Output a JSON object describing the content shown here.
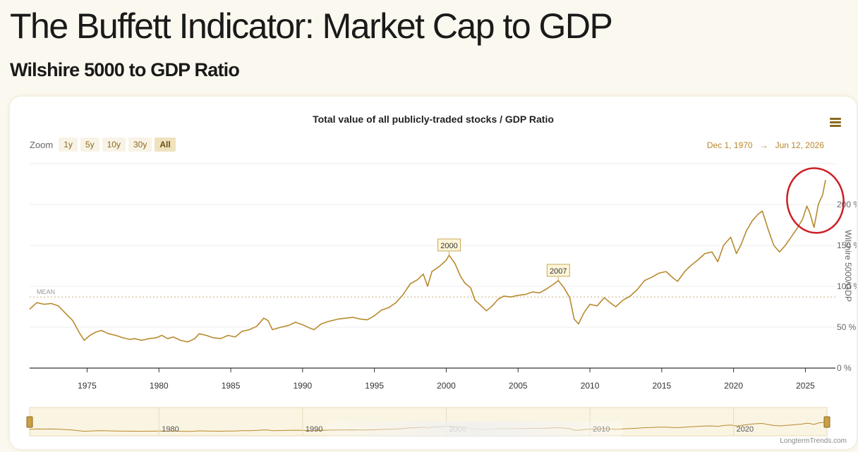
{
  "page": {
    "title": "The Buffett Indicator: Market Cap to GDP",
    "subtitle": "Wilshire 5000 to GDP Ratio"
  },
  "chart_data": {
    "type": "line",
    "title": "Total value of all publicly-traded stocks / GDP Ratio",
    "ylabel": "Wilshire 5000/GDP",
    "ylim": [
      0,
      250
    ],
    "xlim": [
      1971,
      2026.5
    ],
    "y_ticks": [
      0,
      50,
      100,
      150,
      200
    ],
    "y_tick_labels": [
      "0 %",
      "50 %",
      "100 %",
      "150 %",
      "200 %"
    ],
    "x_ticks": [
      "1975",
      "1980",
      "1985",
      "1990",
      "1995",
      "2000",
      "2005",
      "2010",
      "2015",
      "2020",
      "2025"
    ],
    "navigator_ticks": [
      "1980",
      "1990",
      "2000",
      "2010",
      "2020"
    ],
    "mean": {
      "label": "MEAN",
      "value": 87
    },
    "annotations": [
      {
        "label": "2000",
        "x": 2000.2,
        "y": 138
      },
      {
        "label": "2007",
        "x": 2007.8,
        "y": 107
      }
    ],
    "highlight_circle": {
      "x": 2025.2,
      "y": 204
    },
    "line_color": "#b88a2e",
    "series": [
      {
        "x": [
          1971.0,
          1971.5,
          1972.0,
          1972.5,
          1973.0,
          1973.5,
          1974.0,
          1974.5,
          1974.8,
          1975.2,
          1975.6,
          1976.0,
          1976.5,
          1977.0,
          1977.5,
          1978.0,
          1978.3,
          1978.8,
          1979.3,
          1979.8,
          1980.2,
          1980.6,
          1981.0,
          1981.5,
          1982.0,
          1982.5,
          1982.8,
          1983.3,
          1983.8,
          1984.3,
          1984.8,
          1985.3,
          1985.8,
          1986.3,
          1986.8,
          1987.3,
          1987.6,
          1987.9,
          1988.5,
          1989.0,
          1989.5,
          1990.0,
          1990.5,
          1990.8,
          1991.3,
          1991.8,
          1992.5,
          1993.0,
          1993.5,
          1994.0,
          1994.5,
          1995.0,
          1995.5,
          1996.0,
          1996.5,
          1997.0,
          1997.5,
          1998.0,
          1998.4,
          1998.7,
          1999.0,
          1999.5,
          2000.0,
          2000.2,
          2000.6,
          2001.0,
          2001.3,
          2001.7,
          2002.0,
          2002.5,
          2002.8,
          2003.2,
          2003.6,
          2004.0,
          2004.5,
          2005.0,
          2005.5,
          2006.0,
          2006.5,
          2007.0,
          2007.5,
          2007.8,
          2008.2,
          2008.6,
          2008.9,
          2009.2,
          2009.6,
          2010.0,
          2010.5,
          2011.0,
          2011.4,
          2011.8,
          2012.3,
          2012.8,
          2013.3,
          2013.8,
          2014.3,
          2014.8,
          2015.3,
          2015.8,
          2016.1,
          2016.6,
          2017.0,
          2017.5,
          2018.0,
          2018.5,
          2018.9,
          2019.3,
          2019.8,
          2020.2,
          2020.5,
          2020.9,
          2021.3,
          2021.7,
          2022.0,
          2022.4,
          2022.8,
          2023.2,
          2023.6,
          2024.0,
          2024.4,
          2024.8,
          2025.1,
          2025.3,
          2025.6,
          2025.9,
          2026.2,
          2026.4
        ],
        "values": [
          72,
          80,
          78,
          79,
          76,
          67,
          58,
          42,
          34,
          40,
          44,
          46,
          42,
          40,
          37,
          35,
          36,
          34,
          36,
          37,
          40,
          36,
          38,
          34,
          32,
          36,
          42,
          40,
          37,
          36,
          40,
          38,
          45,
          47,
          51,
          61,
          58,
          47,
          50,
          52,
          56,
          53,
          49,
          47,
          54,
          57,
          60,
          61,
          62,
          60,
          59,
          64,
          71,
          74,
          80,
          90,
          103,
          108,
          115,
          100,
          118,
          124,
          132,
          138,
          128,
          112,
          104,
          98,
          83,
          75,
          70,
          76,
          84,
          88,
          87,
          89,
          90,
          93,
          92,
          97,
          103,
          107,
          98,
          86,
          60,
          54,
          68,
          78,
          76,
          86,
          80,
          75,
          83,
          88,
          96,
          107,
          111,
          116,
          118,
          110,
          106,
          118,
          125,
          132,
          140,
          142,
          130,
          150,
          160,
          140,
          150,
          168,
          180,
          188,
          192,
          170,
          150,
          142,
          150,
          160,
          170,
          182,
          198,
          190,
          172,
          200,
          212,
          230
        ]
      }
    ]
  },
  "ui": {
    "zoom_label": "Zoom",
    "zoom_buttons": [
      "1y",
      "5y",
      "10y",
      "30y",
      "All"
    ],
    "zoom_active": "All",
    "date_from": "Dec 1, 1970",
    "date_arrow": "→",
    "date_to": "Jun 12, 2026",
    "credits": "LongtermTrends.com"
  }
}
